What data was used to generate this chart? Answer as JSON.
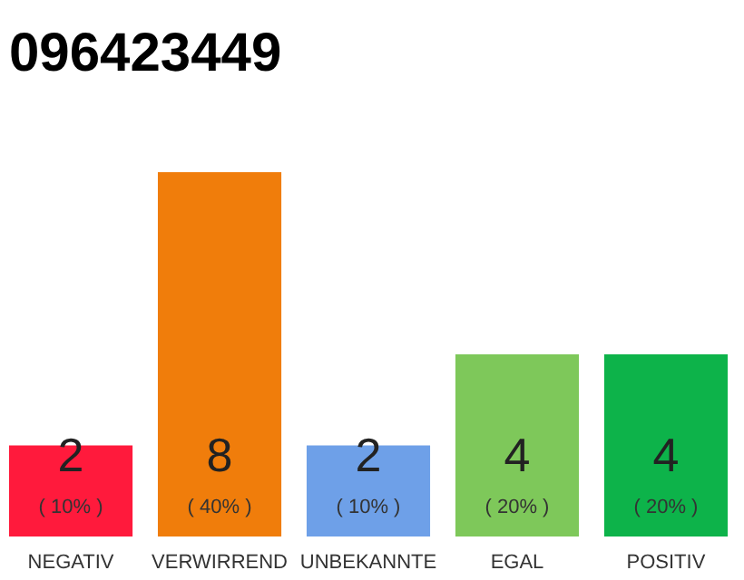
{
  "chart_data": {
    "type": "bar",
    "title": "096423449",
    "categories": [
      "NEGATIV",
      "VERWIRREND",
      "UNBEKANNTE",
      "EGAL",
      "POSITIV"
    ],
    "values": [
      2,
      8,
      2,
      4,
      4
    ],
    "colors": [
      "#ff1a3c",
      "#f07d0b",
      "#6ea0e8",
      "#7ec85a",
      "#0db34a"
    ],
    "data_labels": true,
    "annotations": [
      "( 10% )",
      "( 40% )",
      "( 10% )",
      "( 20% )",
      "( 20% )"
    ]
  }
}
